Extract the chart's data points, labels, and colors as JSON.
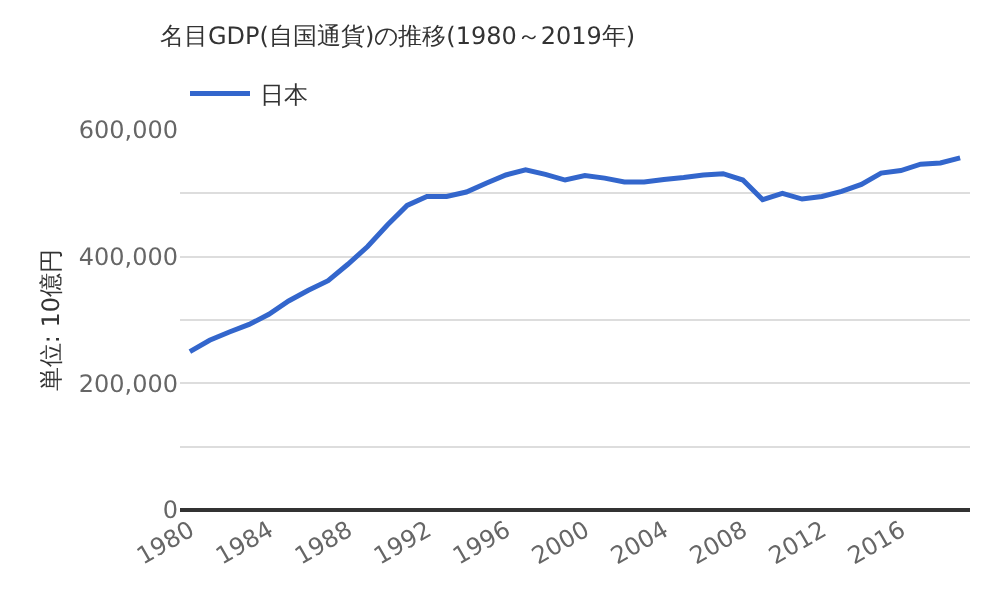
{
  "chart_data": {
    "type": "line",
    "title": "名目GDP(自国通貨)の推移(1980～2019年)",
    "ylabel": "単位: 10億円",
    "x": [
      1980,
      1981,
      1982,
      1983,
      1984,
      1985,
      1986,
      1987,
      1988,
      1989,
      1990,
      1991,
      1992,
      1993,
      1994,
      1995,
      1996,
      1997,
      1998,
      1999,
      2000,
      2001,
      2002,
      2003,
      2004,
      2005,
      2006,
      2007,
      2008,
      2009,
      2010,
      2011,
      2012,
      2013,
      2014,
      2015,
      2016,
      2017,
      2018,
      2019
    ],
    "series": [
      {
        "name": "日本",
        "color": "#3366cc",
        "values": [
          250000,
          268000,
          281000,
          293000,
          309000,
          330000,
          347000,
          362000,
          388000,
          416000,
          450000,
          481000,
          495000,
          495000,
          502000,
          516000,
          529000,
          537000,
          530000,
          521000,
          528000,
          524000,
          518000,
          518000,
          522000,
          525000,
          529000,
          531000,
          521000,
          490000,
          500000,
          491000,
          495000,
          503000,
          514000,
          532000,
          536000,
          546000,
          548000,
          556000
        ]
      }
    ],
    "xlim": [
      1979.5,
      2019.5
    ],
    "xticks": [
      1980,
      1984,
      1988,
      1992,
      1996,
      2000,
      2004,
      2008,
      2012,
      2016
    ],
    "ylim": [
      0,
      600000
    ],
    "yticks": [
      {
        "value": 0,
        "label": "0"
      },
      {
        "value": 100000,
        "label": null
      },
      {
        "value": 200000,
        "label": "200,000"
      },
      {
        "value": 300000,
        "label": null
      },
      {
        "value": 400000,
        "label": "400,000"
      },
      {
        "value": 500000,
        "label": null
      },
      {
        "value": 600000,
        "label": "600,000"
      }
    ],
    "grid": "y",
    "legend": "top left",
    "marker": "none",
    "line_style": "solid"
  }
}
